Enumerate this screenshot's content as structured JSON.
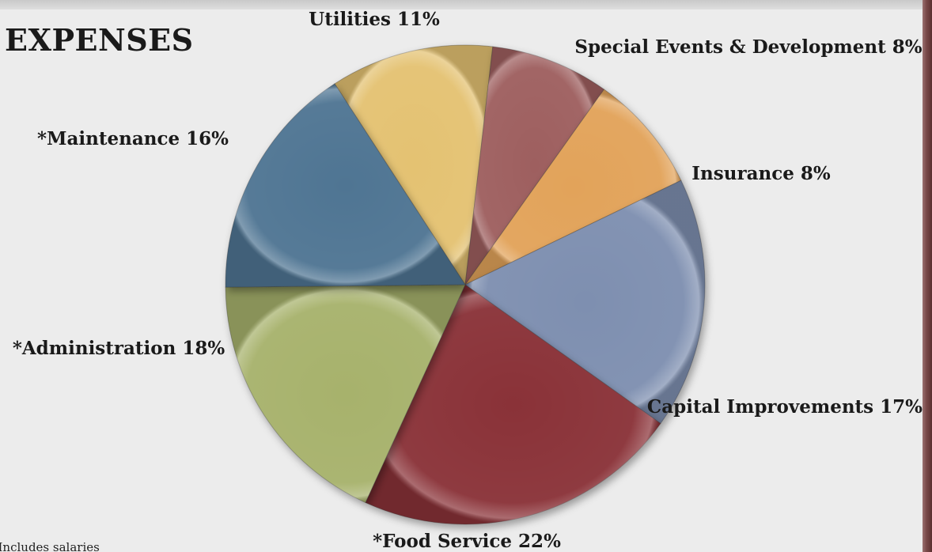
{
  "title": "EXPENSES",
  "footnote": "*Includes salaries",
  "chart_data": {
    "type": "pie",
    "title": "EXPENSES",
    "slices": [
      {
        "label": "Utilities 11%",
        "value": 11,
        "color": "#e4c272"
      },
      {
        "label": "Special Events & Development 8%",
        "value": 8,
        "color": "#9e5f5f"
      },
      {
        "label": "Insurance 8%",
        "value": 8,
        "color": "#e2a35a"
      },
      {
        "label": "Capital Improvements 17%",
        "value": 17,
        "color": "#7e8fb0"
      },
      {
        "label": "*Food Service 22%",
        "value": 22,
        "color": "#8a3338"
      },
      {
        "label": "*Administration 18%",
        "value": 18,
        "color": "#a7b26c"
      },
      {
        "label": "*Maintenance 16%",
        "value": 16,
        "color": "#4f7593"
      }
    ]
  }
}
